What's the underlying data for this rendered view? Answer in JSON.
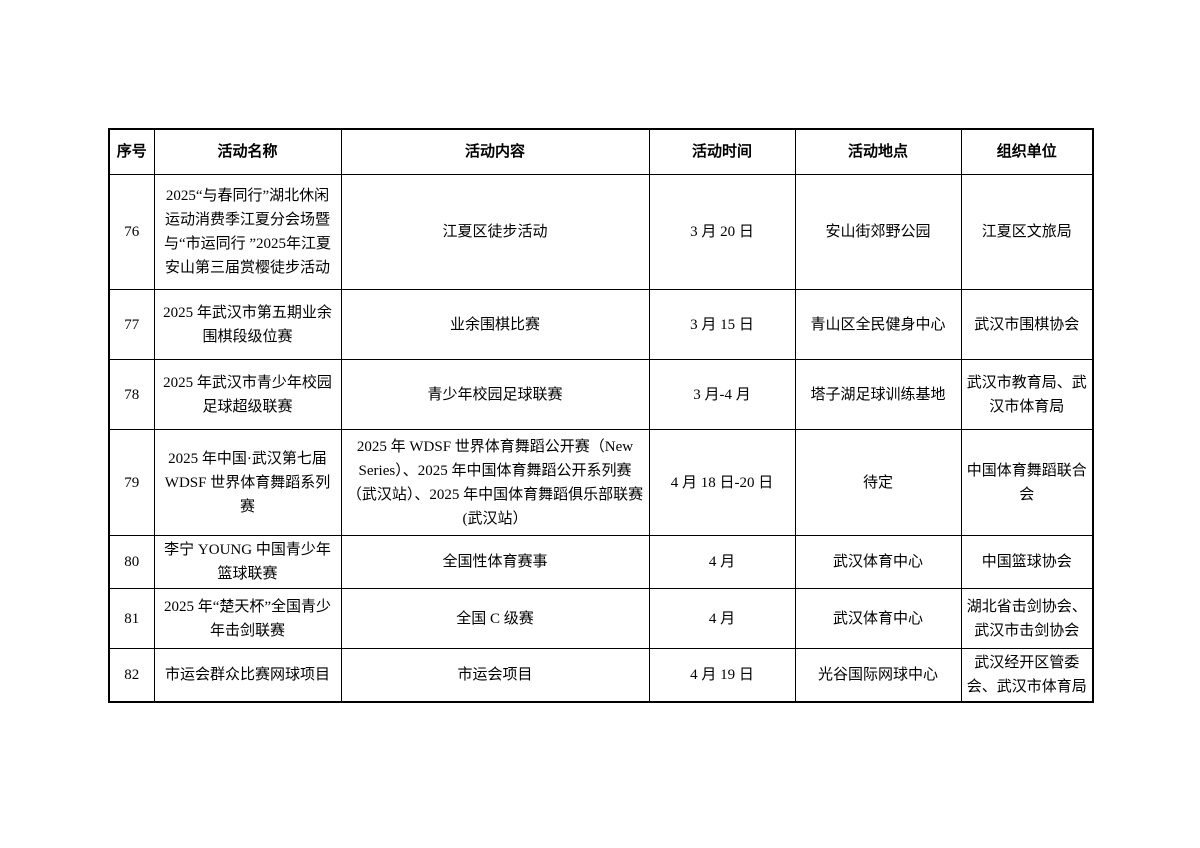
{
  "table": {
    "column_keys": [
      "no",
      "name",
      "content",
      "time",
      "location",
      "organizer"
    ],
    "headers": [
      "序号",
      "活动名称",
      "活动内容",
      "活动时间",
      "活动地点",
      "组织单位"
    ],
    "rows": [
      {
        "no": "76",
        "name": "2025“与春同行”湖北休闲运动消费季江夏分会场暨与“市运同行 ”2025年江夏安山第三届赏樱徒步活动",
        "content": "江夏区徒步活动",
        "time": "3 月 20 日",
        "location": "安山街郊野公园",
        "organizer": "江夏区文旅局"
      },
      {
        "no": "77",
        "name": "2025 年武汉市第五期业余围棋段级位赛",
        "content": "业余围棋比赛",
        "time": "3 月 15 日",
        "location": "青山区全民健身中心",
        "organizer": "武汉市围棋协会"
      },
      {
        "no": "78",
        "name": "2025 年武汉市青少年校园足球超级联赛",
        "content": "青少年校园足球联赛",
        "time": "3 月-4 月",
        "location": "塔子湖足球训练基地",
        "organizer": "武汉市教育局、武汉市体育局"
      },
      {
        "no": "79",
        "name": "2025 年中国·武汉第七届 WDSF 世界体育舞蹈系列赛",
        "content": "2025 年 WDSF 世界体育舞蹈公开赛（New Series）、2025 年中国体育舞蹈公开系列赛（武汉站）、2025 年中国体育舞蹈俱乐部联赛(武汉站）",
        "time": "4 月 18 日-20 日",
        "location": "待定",
        "organizer": "中国体育舞蹈联合会"
      },
      {
        "no": "80",
        "name": "李宁 YOUNG 中国青少年篮球联赛",
        "content": "全国性体育赛事",
        "time": "4 月",
        "location": "武汉体育中心",
        "organizer": "中国篮球协会"
      },
      {
        "no": "81",
        "name": "2025 年“楚天杯”全国青少年击剑联赛",
        "content": "全国 C 级赛",
        "time": "4 月",
        "location": "武汉体育中心",
        "organizer": "湖北省击剑协会、武汉市击剑协会"
      },
      {
        "no": "82",
        "name": "市运会群众比赛网球项目",
        "content": "市运会项目",
        "time": "4 月 19 日",
        "location": "光谷国际网球中心",
        "organizer": "武汉经开区管委会、武汉市体育局"
      }
    ]
  }
}
